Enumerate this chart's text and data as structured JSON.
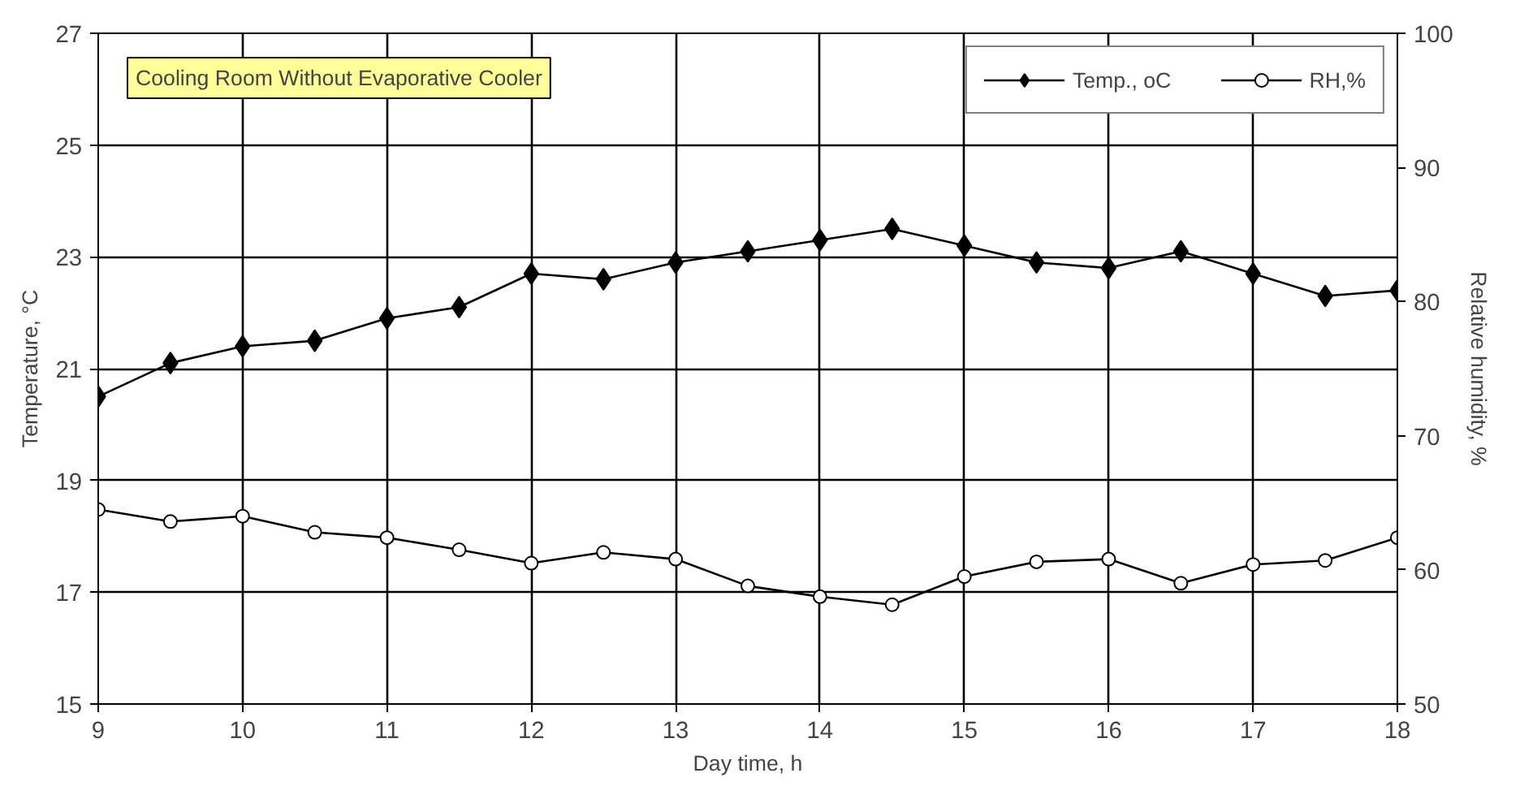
{
  "chart_data": {
    "type": "line",
    "title": "Cooling Room Without Evaporative Cooler",
    "xlabel": "Day time, h",
    "ylabel": "Temperature, °C",
    "y2label": "Relative humidity, %",
    "x": [
      9,
      9.5,
      10,
      10.5,
      11,
      11.5,
      12,
      12.5,
      13,
      13.5,
      14,
      14.5,
      15,
      15.5,
      16,
      16.5,
      17,
      17.5,
      18
    ],
    "series": [
      {
        "name": "Temp., oC",
        "color": "#000000",
        "marker": "diamond",
        "values": [
          20.5,
          21.1,
          21.4,
          21.5,
          21.9,
          22.1,
          22.7,
          22.6,
          22.9,
          23.1,
          23.3,
          23.5,
          23.2,
          22.9,
          22.8,
          23.1,
          22.7,
          22.3,
          22.4
        ]
      },
      {
        "name": "RH,%",
        "color": "#000000",
        "marker": "circle",
        "axis": "y2",
        "values": [
          64.5,
          63.6,
          64.0,
          62.8,
          62.4,
          61.5,
          60.5,
          61.3,
          60.8,
          58.8,
          58.0,
          57.4,
          59.5,
          60.6,
          60.8,
          59.0,
          60.4,
          60.7,
          62.4
        ]
      }
    ],
    "xlim": [
      9,
      18
    ],
    "xticks": [
      9,
      10,
      11,
      12,
      13,
      14,
      15,
      16,
      17,
      18
    ],
    "ylim": [
      15,
      27
    ],
    "yticks": [
      15,
      17,
      19,
      21,
      23,
      25,
      27
    ],
    "y2lim": [
      50,
      100
    ],
    "y2ticks": [
      50,
      60,
      70,
      80,
      90,
      100
    ],
    "grid": true,
    "legend": "top right",
    "line_style": "solid"
  }
}
